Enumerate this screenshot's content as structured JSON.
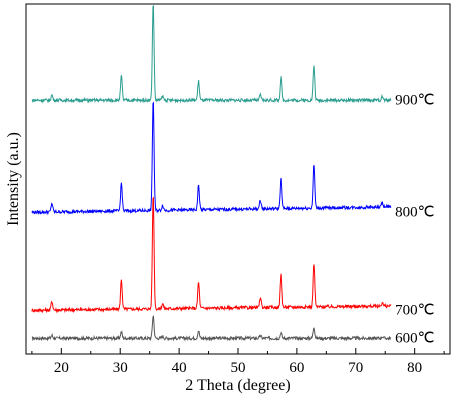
{
  "chart_data": {
    "type": "line",
    "title": "",
    "xlabel": "2 Theta (degree)",
    "ylabel": "Intensity (a.u.)",
    "xlim": [
      14,
      86
    ],
    "ylim": [
      0,
      100
    ],
    "x_ticks": [
      20,
      30,
      40,
      50,
      60,
      70,
      80
    ],
    "y_ticks_shown": false,
    "grid": false,
    "legend": "none (inline labels at right end of each trace)",
    "series": [
      {
        "name": "600℃",
        "color": "#555555",
        "baseline": 4.5,
        "slope": 0.0,
        "peaks": [
          [
            18.4,
            0.8
          ],
          [
            30.2,
            1.8
          ],
          [
            35.6,
            6.5
          ],
          [
            37.2,
            0.6
          ],
          [
            43.3,
            2.2
          ],
          [
            53.8,
            0.7
          ],
          [
            57.3,
            1.6
          ],
          [
            62.9,
            3.3
          ],
          [
            74.5,
            0.5
          ]
        ]
      },
      {
        "name": "700℃",
        "color": "#ff0000",
        "baseline": 12.5,
        "slope": 0.02,
        "peaks": [
          [
            18.4,
            2.5
          ],
          [
            30.2,
            8.5
          ],
          [
            35.6,
            33.0
          ],
          [
            37.2,
            1.5
          ],
          [
            43.3,
            7.5
          ],
          [
            53.8,
            3.0
          ],
          [
            57.3,
            9.5
          ],
          [
            62.9,
            12.5
          ],
          [
            74.5,
            1.0
          ]
        ]
      },
      {
        "name": "800℃",
        "color": "#0000ff",
        "baseline": 40.5,
        "slope": 0.025,
        "peaks": [
          [
            18.4,
            2.5
          ],
          [
            30.2,
            8.0
          ],
          [
            35.6,
            32.0
          ],
          [
            37.2,
            1.5
          ],
          [
            43.3,
            7.0
          ],
          [
            53.8,
            2.5
          ],
          [
            57.3,
            8.5
          ],
          [
            62.9,
            12.5
          ],
          [
            74.5,
            1.2
          ]
        ]
      },
      {
        "name": "900℃",
        "color": "#2a9d8f",
        "baseline": 72.5,
        "slope": 0.0,
        "peaks": [
          [
            18.4,
            1.5
          ],
          [
            30.2,
            7.0
          ],
          [
            35.6,
            28.0
          ],
          [
            37.2,
            1.2
          ],
          [
            43.3,
            5.5
          ],
          [
            53.8,
            1.5
          ],
          [
            57.3,
            6.5
          ],
          [
            62.9,
            10.0
          ],
          [
            74.5,
            1.0
          ]
        ]
      }
    ]
  }
}
